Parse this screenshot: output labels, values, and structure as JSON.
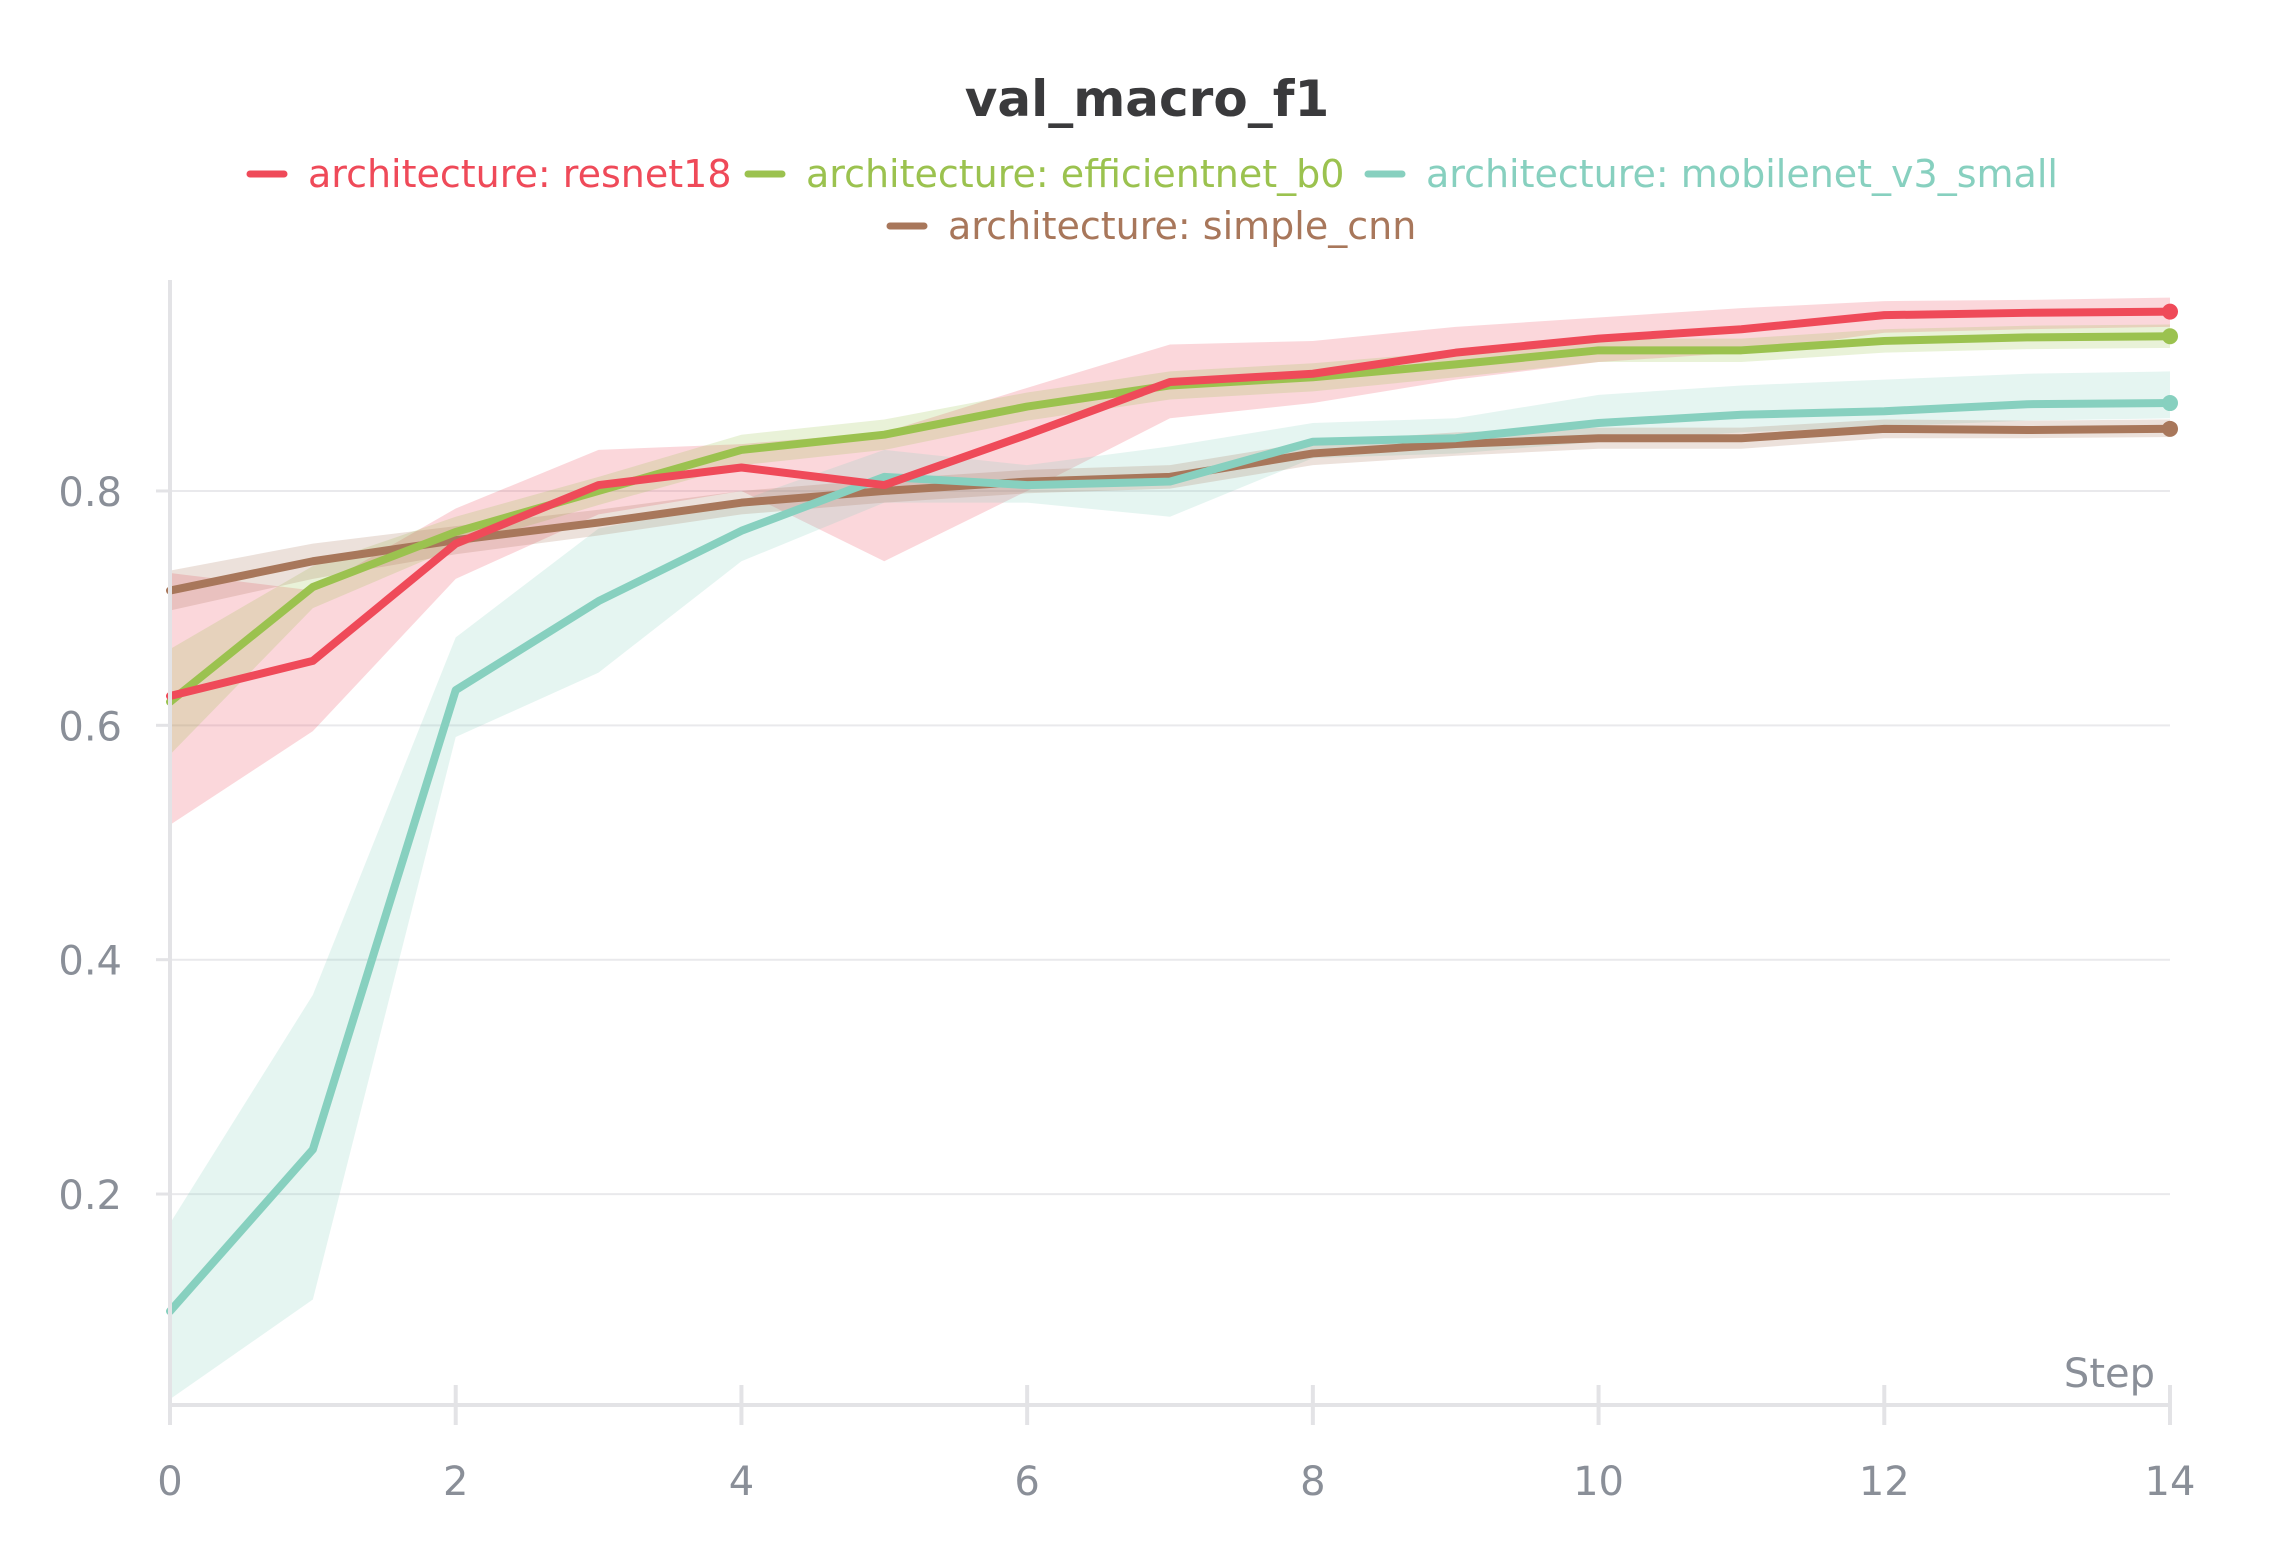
{
  "chart_data": {
    "type": "line",
    "title": "val_macro_f1",
    "xlabel": "Step",
    "ylabel": "",
    "xlim": [
      0,
      14
    ],
    "ylim": [
      0.02,
      0.98
    ],
    "xticks": [
      0,
      2,
      4,
      6,
      8,
      10,
      12,
      14
    ],
    "xtick_labels": [
      "0",
      "2",
      "4",
      "6",
      "8",
      "10",
      "12",
      "14"
    ],
    "yticks": [
      0.2,
      0.4,
      0.6,
      0.8
    ],
    "ytick_labels": [
      "0.2",
      "0.4",
      "0.6",
      "0.8"
    ],
    "grid": "horizontal",
    "legend_position": "top-center",
    "x": [
      0,
      1,
      2,
      3,
      4,
      5,
      6,
      7,
      8,
      9,
      10,
      11,
      12,
      13,
      14
    ],
    "series": [
      {
        "name": "architecture: resnet18",
        "color": "#ef4a59",
        "values": [
          0.625,
          0.655,
          0.755,
          0.805,
          0.82,
          0.805,
          0.848,
          0.893,
          0.9,
          0.918,
          0.93,
          0.938,
          0.95,
          0.952,
          0.953
        ],
        "lower": [
          0.515,
          0.595,
          0.725,
          0.78,
          0.8,
          0.74,
          0.8,
          0.862,
          0.875,
          0.895,
          0.91,
          0.918,
          0.935,
          0.938,
          0.94
        ],
        "upper": [
          0.73,
          0.715,
          0.785,
          0.835,
          0.84,
          0.85,
          0.888,
          0.925,
          0.928,
          0.94,
          0.948,
          0.956,
          0.962,
          0.963,
          0.965
        ]
      },
      {
        "name": "architecture: efficientnet_b0",
        "color": "#9bc24f",
        "values": [
          0.62,
          0.718,
          0.765,
          0.8,
          0.835,
          0.848,
          0.872,
          0.89,
          0.897,
          0.908,
          0.92,
          0.92,
          0.928,
          0.931,
          0.932
        ],
        "lower": [
          0.575,
          0.7,
          0.752,
          0.788,
          0.822,
          0.835,
          0.86,
          0.878,
          0.885,
          0.897,
          0.91,
          0.91,
          0.918,
          0.921,
          0.922
        ],
        "upper": [
          0.665,
          0.736,
          0.778,
          0.812,
          0.848,
          0.861,
          0.884,
          0.902,
          0.909,
          0.919,
          0.93,
          0.93,
          0.938,
          0.941,
          0.942
        ]
      },
      {
        "name": "architecture: mobilenet_v3_small",
        "color": "#87d0bf",
        "values": [
          0.1,
          0.238,
          0.63,
          0.706,
          0.766,
          0.812,
          0.805,
          0.808,
          0.842,
          0.845,
          0.858,
          0.865,
          0.868,
          0.874,
          0.875
        ],
        "lower": [
          0.025,
          0.11,
          0.59,
          0.645,
          0.74,
          0.79,
          0.79,
          0.778,
          0.828,
          0.832,
          0.842,
          0.85,
          0.855,
          0.86,
          0.862
        ],
        "upper": [
          0.175,
          0.37,
          0.675,
          0.768,
          0.792,
          0.835,
          0.822,
          0.838,
          0.858,
          0.862,
          0.882,
          0.89,
          0.895,
          0.9,
          0.902
        ]
      },
      {
        "name": "architecture: simple_cnn",
        "color": "#a8775b",
        "values": [
          0.715,
          0.74,
          0.758,
          0.773,
          0.79,
          0.8,
          0.808,
          0.812,
          0.832,
          0.84,
          0.845,
          0.845,
          0.853,
          0.852,
          0.853
        ],
        "lower": [
          0.698,
          0.725,
          0.746,
          0.762,
          0.78,
          0.79,
          0.798,
          0.802,
          0.822,
          0.83,
          0.836,
          0.836,
          0.845,
          0.845,
          0.846
        ],
        "upper": [
          0.732,
          0.755,
          0.77,
          0.784,
          0.8,
          0.81,
          0.818,
          0.822,
          0.842,
          0.85,
          0.854,
          0.854,
          0.861,
          0.86,
          0.861
        ]
      }
    ]
  }
}
